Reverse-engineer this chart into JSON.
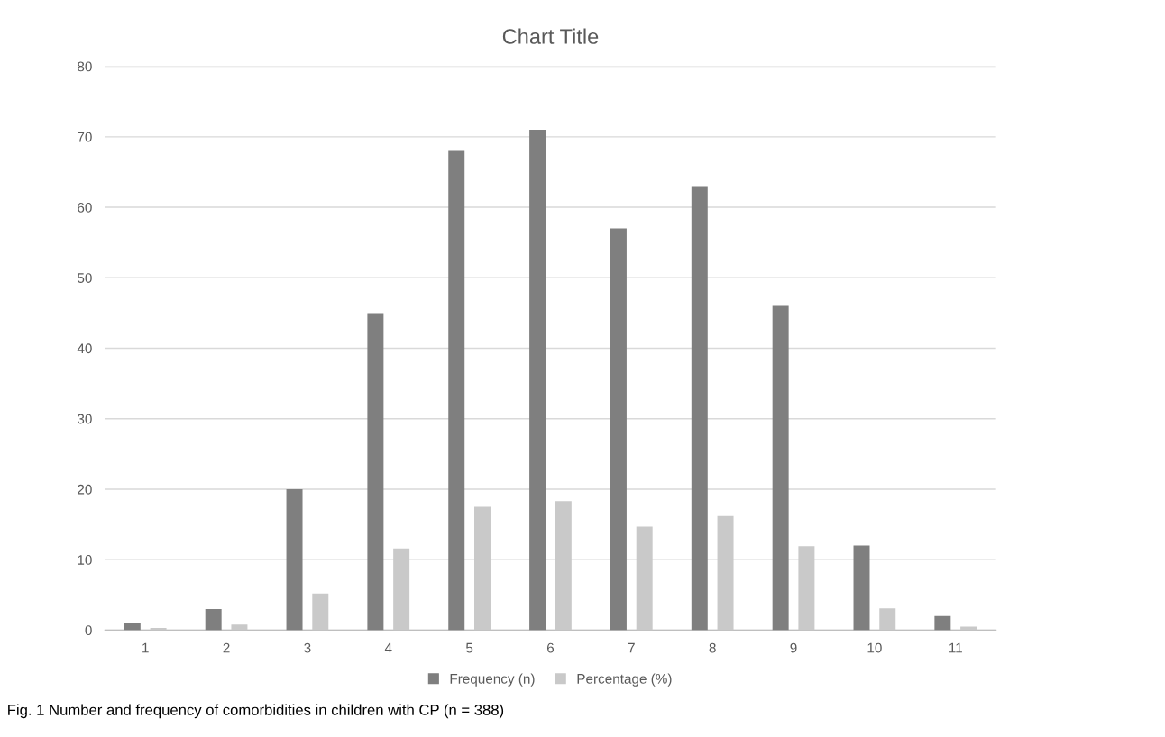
{
  "chart_data": {
    "type": "bar",
    "title": "Chart Title",
    "categories": [
      "1",
      "2",
      "3",
      "4",
      "5",
      "6",
      "7",
      "8",
      "9",
      "10",
      "11"
    ],
    "series": [
      {
        "name": "Frequency (n)",
        "color": "#7f7f7f",
        "values": [
          1,
          3,
          20,
          45,
          68,
          71,
          57,
          63,
          46,
          12,
          2
        ]
      },
      {
        "name": "Percentage (%)",
        "color": "#c9c9c9",
        "values": [
          0.3,
          0.8,
          5.2,
          11.6,
          17.5,
          18.3,
          14.7,
          16.2,
          11.9,
          3.1,
          0.5
        ]
      }
    ],
    "ylim": [
      0,
      80
    ],
    "yticks": [
      0,
      10,
      20,
      30,
      40,
      50,
      60,
      70,
      80
    ],
    "grid": "y",
    "legend": "bottom",
    "annotations": [
      "Fig. 1 Number and frequency of comorbidities in children with CP (n = 388)"
    ]
  }
}
